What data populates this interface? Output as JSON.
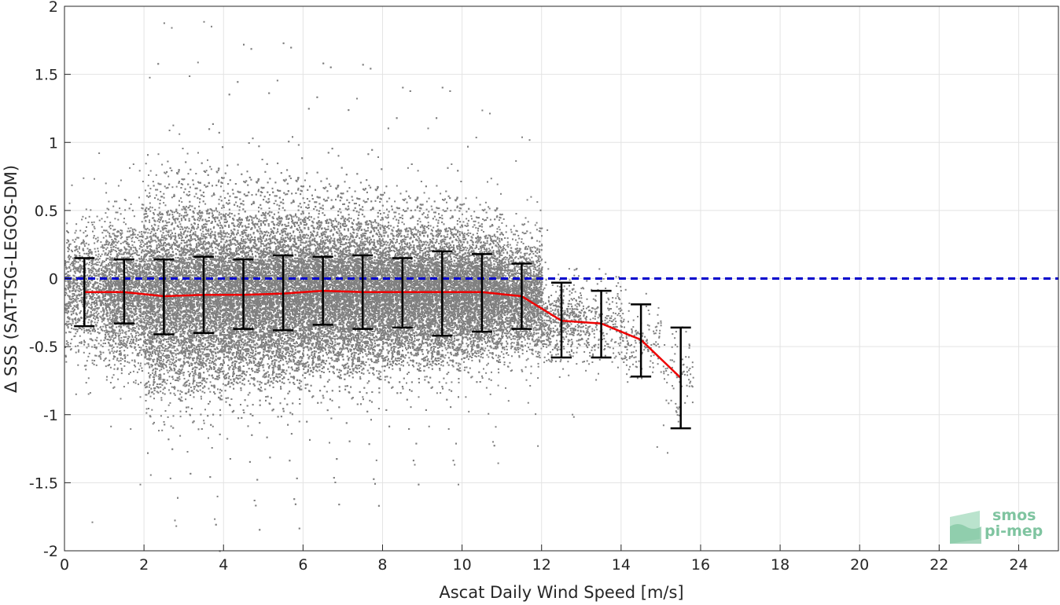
{
  "chart_data": {
    "type": "scatter",
    "xlabel": "Ascat Daily Wind Speed [m/s]",
    "ylabel": "Δ SSS (SAT-TSG-LEGOS-DM)",
    "xlim": [
      0,
      25
    ],
    "ylim": [
      -2,
      2
    ],
    "xticks": [
      0,
      2,
      4,
      6,
      8,
      10,
      12,
      14,
      16,
      18,
      20,
      22,
      24
    ],
    "yticks": [
      -2,
      -1.5,
      -1,
      -0.5,
      0,
      0.5,
      1,
      1.5,
      2
    ],
    "ytick_labels": [
      "-2",
      "-1.5",
      "-1",
      "-0.5",
      "0",
      "0.5",
      "1",
      "1.5",
      "2"
    ],
    "grid": true,
    "reference_line": {
      "y": 0,
      "style": "dashed",
      "color": "#0000cc"
    },
    "scatter_color": "#808080",
    "mean_line_color": "#ee0000",
    "errorbar_color": "#000000",
    "binned_stats": {
      "x": [
        0.5,
        1.5,
        2.5,
        3.5,
        4.5,
        5.5,
        6.5,
        7.5,
        8.5,
        9.5,
        10.5,
        11.5,
        12.5,
        13.5,
        14.5,
        15.5
      ],
      "mean": [
        -0.1,
        -0.1,
        -0.13,
        -0.12,
        -0.12,
        -0.11,
        -0.09,
        -0.1,
        -0.1,
        -0.1,
        -0.1,
        -0.13,
        -0.31,
        -0.33,
        -0.45,
        -0.73
      ],
      "lower": [
        -0.35,
        -0.33,
        -0.41,
        -0.4,
        -0.37,
        -0.38,
        -0.34,
        -0.37,
        -0.36,
        -0.42,
        -0.39,
        -0.37,
        -0.58,
        -0.58,
        -0.72,
        -1.1
      ],
      "upper": [
        0.15,
        0.14,
        0.14,
        0.16,
        0.14,
        0.17,
        0.16,
        0.17,
        0.15,
        0.2,
        0.18,
        0.11,
        -0.03,
        -0.09,
        -0.19,
        -0.36
      ]
    },
    "scatter_density": {
      "x_bins": [
        0.5,
        1.5,
        2.5,
        3.5,
        4.5,
        5.5,
        6.5,
        7.5,
        8.5,
        9.5,
        10.5,
        11.5,
        12.5,
        13.5,
        14.5,
        15.5
      ],
      "relative_count": [
        0.2,
        0.35,
        0.6,
        0.85,
        1,
        1,
        1,
        0.95,
        0.85,
        0.75,
        0.6,
        0.35,
        0.1,
        0.05,
        0.03,
        0.02
      ],
      "spread": [
        0.4,
        0.45,
        0.6,
        0.6,
        0.55,
        0.55,
        0.5,
        0.5,
        0.45,
        0.45,
        0.4,
        0.35,
        0.25,
        0.25,
        0.25,
        0.25
      ]
    }
  },
  "logo": {
    "line1": "smos",
    "line2": "pi-mep",
    "color": "#7fc4a0"
  }
}
